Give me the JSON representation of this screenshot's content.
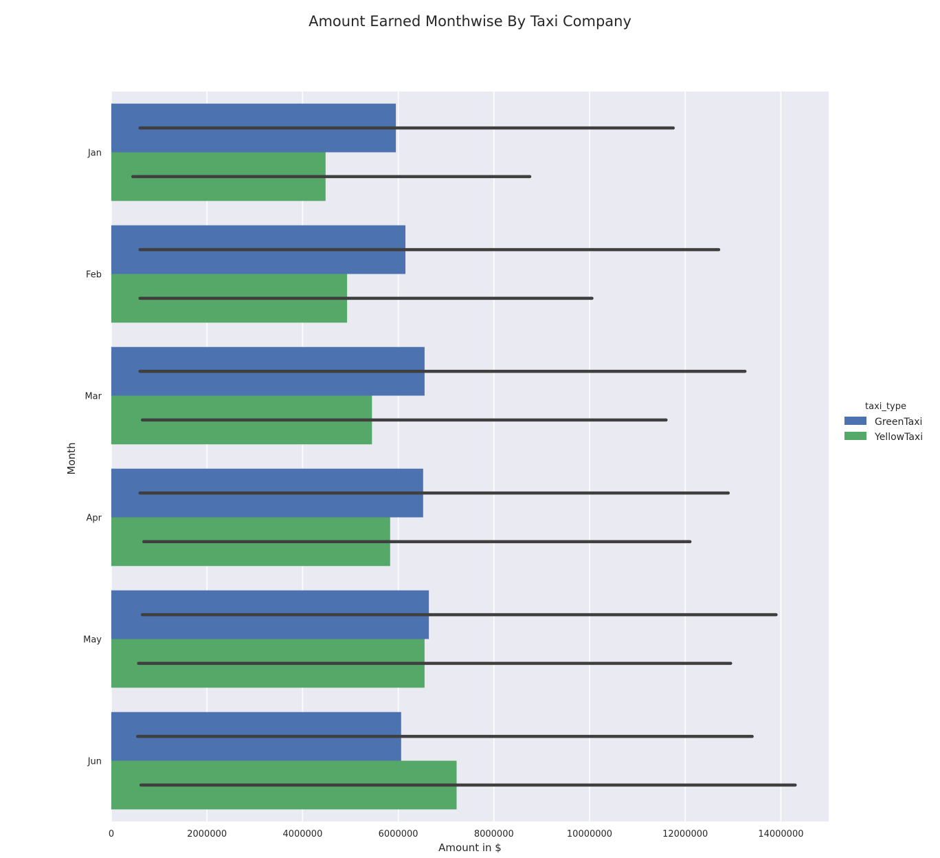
{
  "chart_data": {
    "type": "bar",
    "orientation": "horizontal",
    "title": "Amount Earned Monthwise By Taxi Company",
    "xlabel": "Amount in $",
    "ylabel": "Month",
    "xlim": [
      0,
      15000000
    ],
    "x_ticks": [
      0,
      2000000,
      4000000,
      6000000,
      8000000,
      10000000,
      12000000,
      14000000
    ],
    "x_tick_labels": [
      "0",
      "2000000",
      "4000000",
      "6000000",
      "8000000",
      "10000000",
      "12000000",
      "14000000"
    ],
    "categories": [
      "Jan",
      "Feb",
      "Mar",
      "Apr",
      "May",
      "Jun"
    ],
    "grid": true,
    "legend": {
      "title": "taxi_type",
      "placement": "right"
    },
    "series": [
      {
        "name": "GreenTaxi",
        "color": "#4c72b0",
        "values": [
          5950000,
          6150000,
          6550000,
          6520000,
          6640000,
          6060000
        ],
        "error_low": [
          600000,
          600000,
          600000,
          600000,
          650000,
          550000
        ],
        "error_high": [
          11750000,
          12700000,
          13250000,
          12900000,
          13900000,
          13400000
        ]
      },
      {
        "name": "YellowTaxi",
        "color": "#55a868",
        "values": [
          4480000,
          4930000,
          5450000,
          5830000,
          6550000,
          7220000
        ],
        "error_low": [
          450000,
          600000,
          650000,
          680000,
          570000,
          620000
        ],
        "error_high": [
          8750000,
          10050000,
          11600000,
          12100000,
          12950000,
          14300000
        ]
      }
    ],
    "error_bar_color": "#3f3f3f"
  }
}
